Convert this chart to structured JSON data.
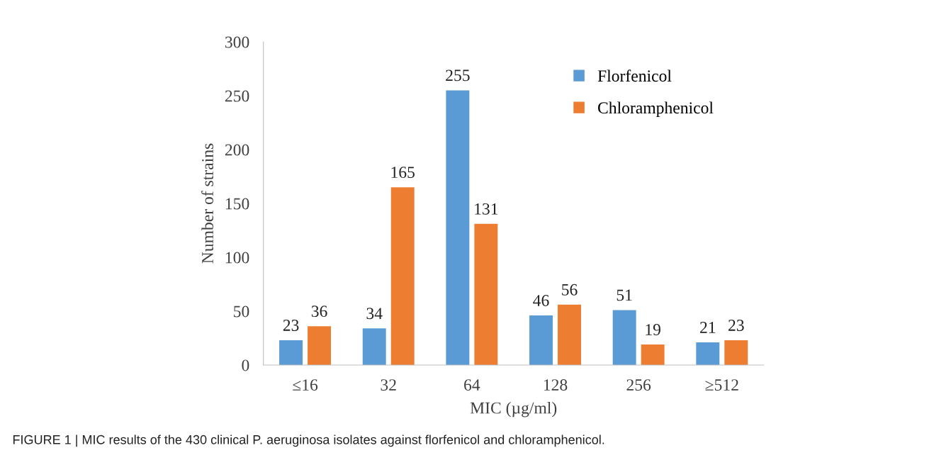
{
  "chart_data": {
    "type": "bar",
    "xlabel": "MIC (µg/ml)",
    "ylabel": "Number of strains",
    "categories": [
      "≤16",
      "32",
      "64",
      "128",
      "256",
      "≥512"
    ],
    "series": [
      {
        "name": "Florfenicol",
        "color": "#5b9bd5",
        "values": [
          23,
          34,
          255,
          46,
          51,
          21
        ]
      },
      {
        "name": "Chloramphenicol",
        "color": "#ed7d31",
        "values": [
          36,
          165,
          131,
          56,
          19,
          23
        ]
      }
    ],
    "ylim": [
      0,
      300
    ],
    "yticks": [
      0,
      50,
      100,
      150,
      200,
      250,
      300
    ],
    "data_labels": true,
    "grid": false,
    "legend": "top right",
    "annotations": [
      "FIGURE 1 | MIC results of the 430 clinical P. aeruginosa isolates against florfenicol and chloramphenicol."
    ]
  }
}
